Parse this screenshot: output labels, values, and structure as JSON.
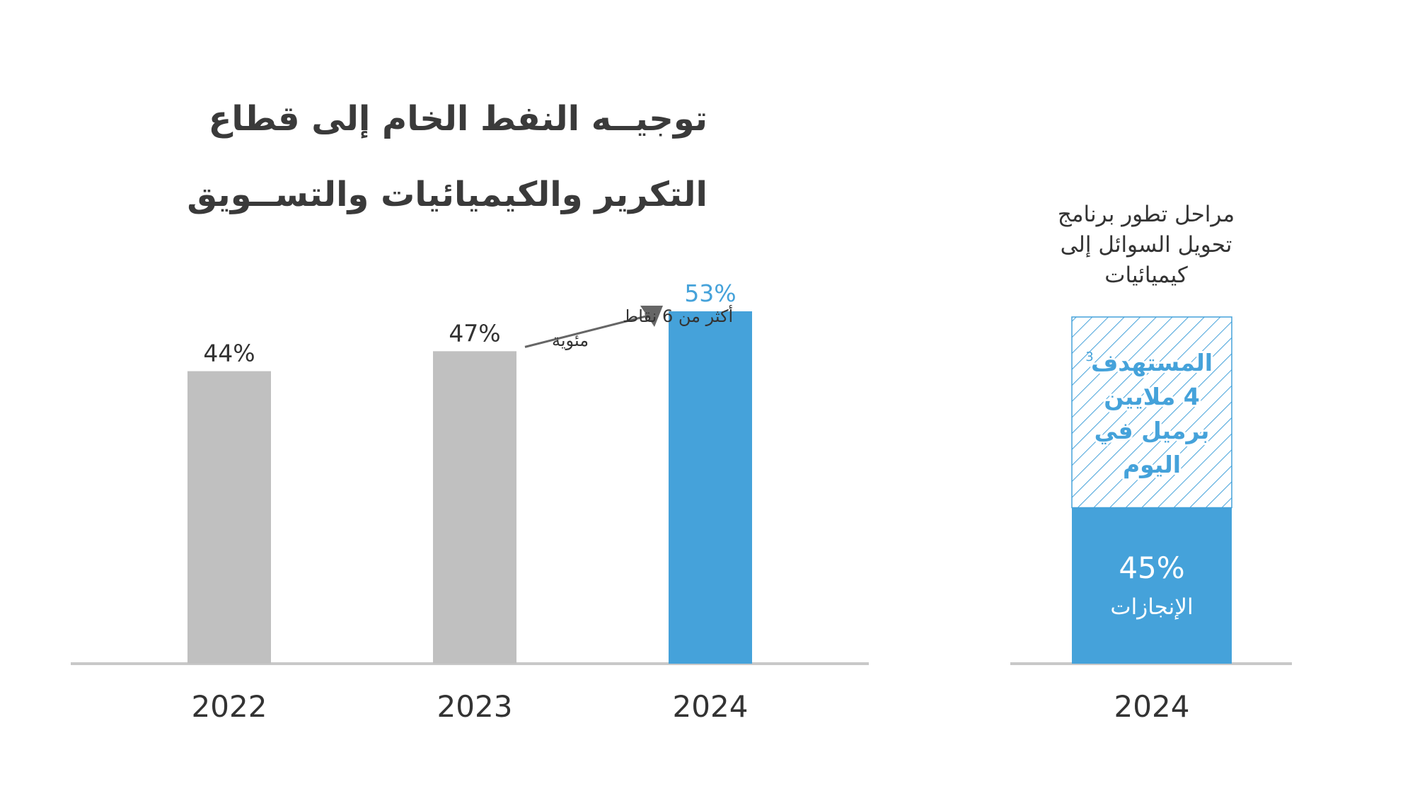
{
  "title": {
    "line1": "توجيــه النفط الخام إلى قطاع",
    "line2": "التكرير والكيميائيات والتســويق"
  },
  "chart_data": [
    {
      "type": "bar",
      "categories": [
        "2022",
        "2023",
        "2024"
      ],
      "values": [
        44,
        47,
        53
      ],
      "value_labels": [
        "44%",
        "47%",
        "53%"
      ],
      "bar_colors": [
        "#c0c0c0",
        "#c0c0c0",
        "#45a2da"
      ],
      "label_colors": [
        "#333333",
        "#333333",
        "#45a2da"
      ],
      "ylim": [
        0,
        53
      ],
      "annotation": {
        "text_line1": "أكثر من 6 نقاط",
        "text_line2": "مئوية"
      }
    },
    {
      "type": "bar",
      "title": "مراحل تطور برنامج تحويل السوائل إلى كيميائيات",
      "title_lines": [
        "مراحل تطور برنامج",
        "تحويل السوائل إلى",
        "كيميائيات"
      ],
      "categories": [
        "2024"
      ],
      "achieved": {
        "value": 45,
        "label": "45%",
        "sublabel": "الإنجازات",
        "color": "#45a2da"
      },
      "target": {
        "value": 100,
        "label_lines": [
          "المستهدف",
          "4 ملايين",
          "برميل في",
          "اليوم"
        ],
        "footnote": "3",
        "color": "#45a2da",
        "pattern": "diagonal-hatch"
      }
    }
  ],
  "colors": {
    "gray_bar": "#c0c0c0",
    "accent_blue": "#45a2da",
    "axis": "#c8c8c8",
    "text": "#333333"
  }
}
